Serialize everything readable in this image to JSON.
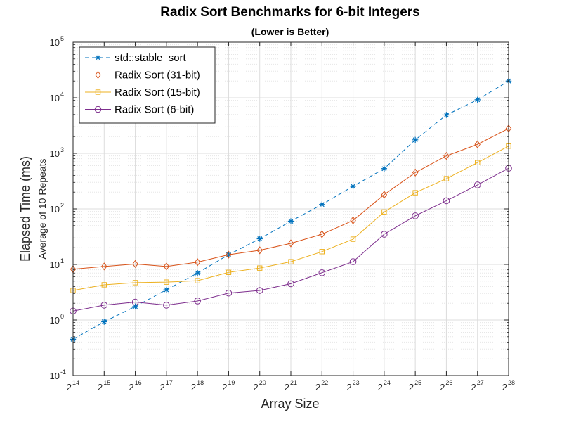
{
  "chart_data": {
    "type": "line",
    "title": "Radix Sort Benchmarks for 6-bit Integers",
    "subtitle": "(Lower is Better)",
    "xlabel": "Array Size",
    "ylabel": "Elapsed Time (ms)",
    "ylabel_sub": "Average of 10 Repeats",
    "x_tick_base": "2",
    "x": [
      14,
      15,
      16,
      17,
      18,
      19,
      20,
      21,
      22,
      23,
      24,
      25,
      26,
      27,
      28
    ],
    "xlim": [
      14,
      28
    ],
    "ylim": [
      0.1,
      100000
    ],
    "y_scale": "log",
    "y_tick_base": "10",
    "y_tick_exponents": [
      "-1",
      "0",
      "1",
      "2",
      "3",
      "4",
      "5"
    ],
    "grid": true,
    "legend_position": "top-left",
    "series": [
      {
        "name": "std::stable_sort",
        "color": "#0072BD",
        "line_style": "dashed",
        "marker": "asterisk",
        "values": [
          0.45,
          0.93,
          1.75,
          3.5,
          7.0,
          15.0,
          29.0,
          60.0,
          120.0,
          255.0,
          530.0,
          1750.0,
          4900.0,
          9200.0,
          20000.0
        ]
      },
      {
        "name": "Radix Sort (31-bit)",
        "color": "#D95319",
        "line_style": "solid",
        "marker": "diamond",
        "values": [
          8.2,
          9.2,
          10.2,
          9.2,
          11.0,
          15.0,
          18.0,
          24.0,
          35.0,
          62.0,
          180.0,
          450.0,
          900.0,
          1450.0,
          2800.0
        ]
      },
      {
        "name": "Radix Sort (15-bit)",
        "color": "#EDB120",
        "line_style": "solid",
        "marker": "square",
        "values": [
          3.4,
          4.3,
          4.7,
          4.8,
          5.1,
          7.2,
          8.6,
          11.2,
          17.0,
          28.5,
          88.0,
          195.0,
          350.0,
          680.0,
          1350.0
        ]
      },
      {
        "name": "Radix Sort (6-bit)",
        "color": "#7E2F8E",
        "line_style": "solid",
        "marker": "circle",
        "values": [
          1.45,
          1.85,
          2.1,
          1.85,
          2.2,
          3.05,
          3.4,
          4.5,
          7.1,
          11.2,
          35.0,
          75.0,
          140.0,
          270.0,
          540.0
        ]
      }
    ]
  }
}
